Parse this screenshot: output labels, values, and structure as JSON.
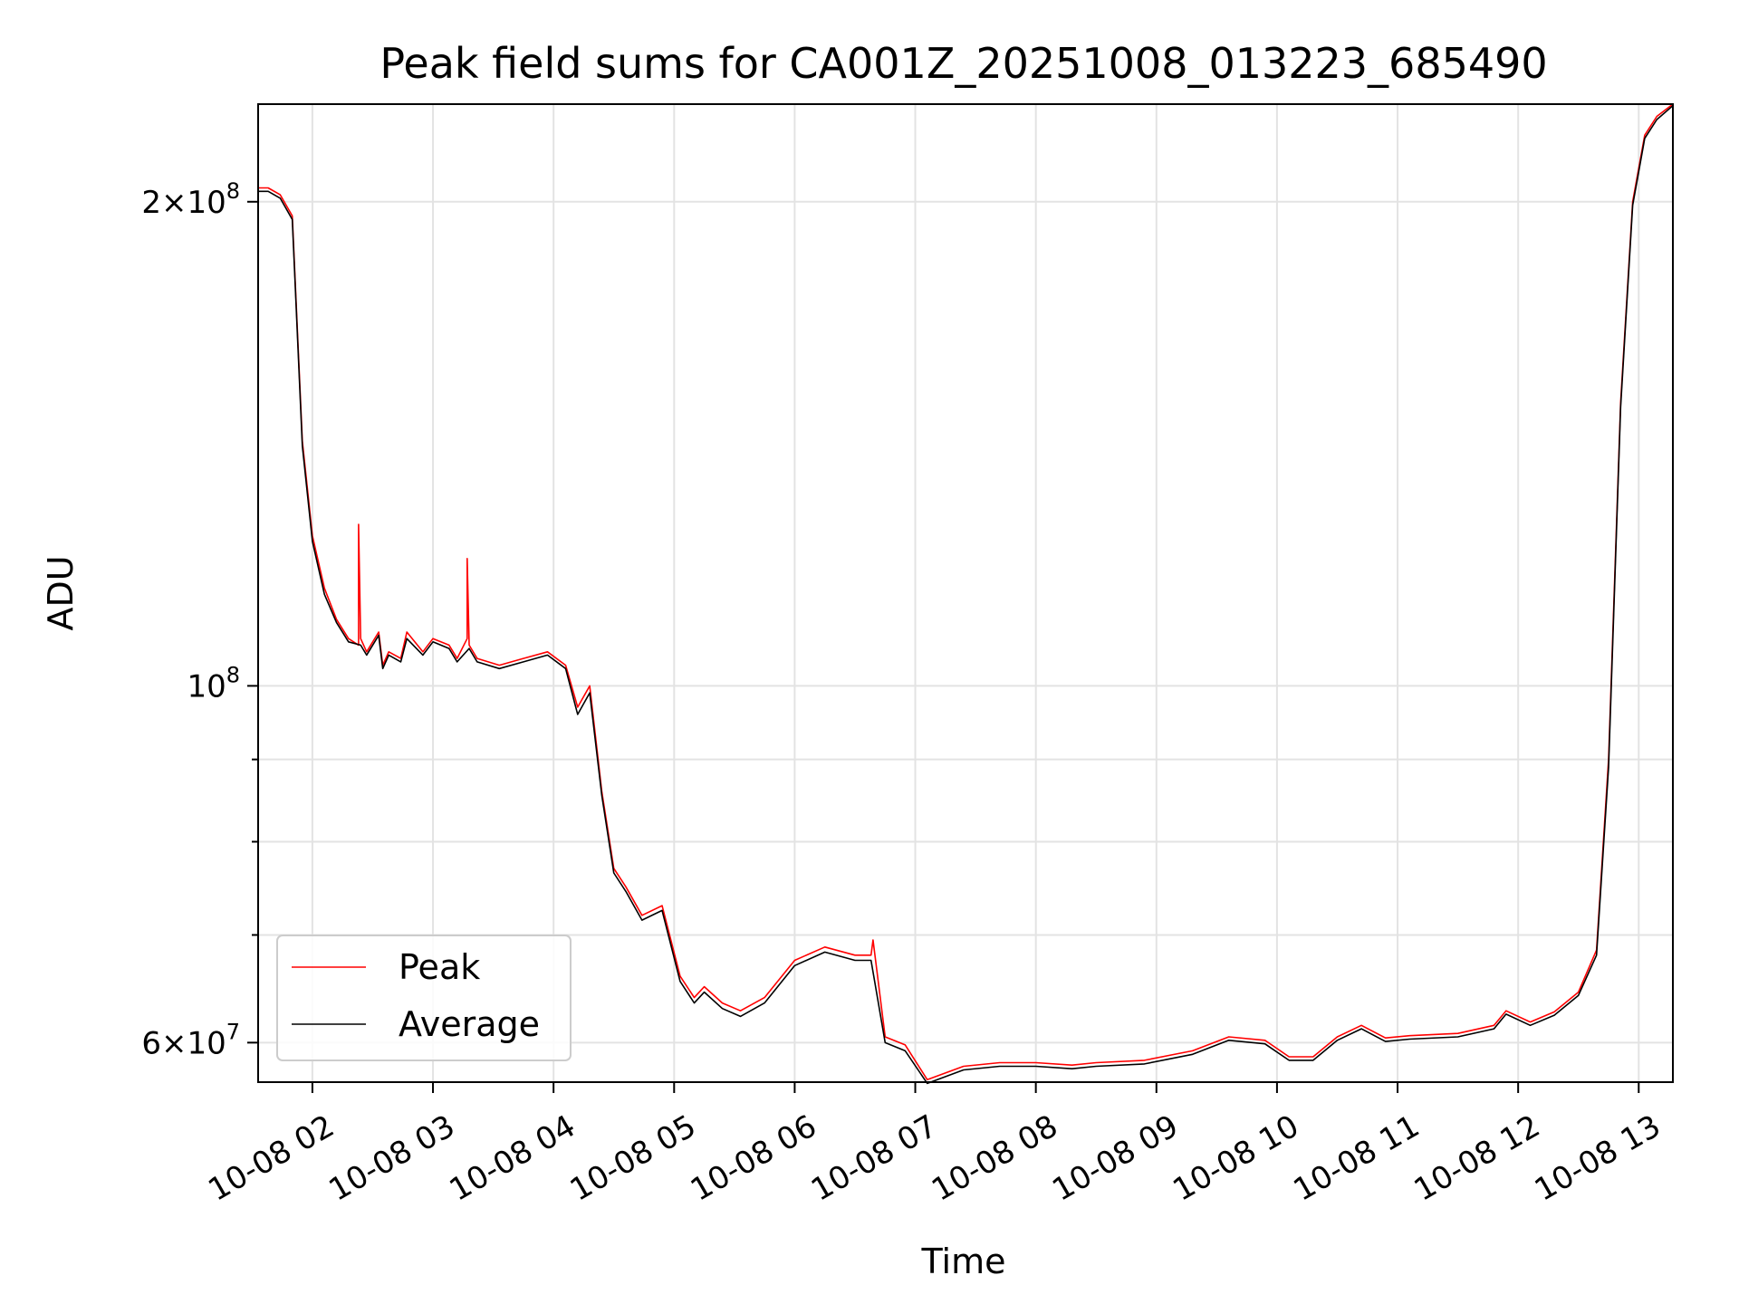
{
  "chart_data": {
    "type": "line",
    "title": "Peak field sums for CA001Z_20251008_013223_685490",
    "xlabel": "Time",
    "ylabel": "ADU",
    "x_unit": "date-hour",
    "xlim": [
      "10-08 01:33",
      "10-08 13:17"
    ],
    "ylim": [
      56700000,
      230000000
    ],
    "yscale": "log",
    "x_ticks": [
      "10-08 02",
      "10-08 03",
      "10-08 04",
      "10-08 05",
      "10-08 06",
      "10-08 07",
      "10-08 08",
      "10-08 09",
      "10-08 10",
      "10-08 11",
      "10-08 12",
      "10-08 13"
    ],
    "y_ticks": [
      {
        "value": 60000000,
        "mantissa": "6",
        "exponent": "7"
      },
      {
        "value": 100000000,
        "mantissa": "",
        "exponent": "8"
      },
      {
        "value": 200000000,
        "mantissa": "2",
        "exponent": "8"
      }
    ],
    "y_minor_ticks": [
      70000000,
      80000000,
      90000000
    ],
    "grid": true,
    "legend_position": "lower-left",
    "series": [
      {
        "name": "Peak",
        "color": "#ff0000",
        "x": [
          "10-08 01:33",
          "10-08 01:38",
          "10-08 01:44",
          "10-08 01:50",
          "10-08 01:55",
          "10-08 02:00",
          "10-08 02:06",
          "10-08 02:12",
          "10-08 02:18",
          "10-08 02:23",
          "10-08 02:23",
          "10-08 02:24",
          "10-08 02:27",
          "10-08 02:33",
          "10-08 02:35",
          "10-08 02:38",
          "10-08 02:44",
          "10-08 02:47",
          "10-08 02:55",
          "10-08 03:00",
          "10-08 03:08",
          "10-08 03:12",
          "10-08 03:17",
          "10-08 03:17",
          "10-08 03:18",
          "10-08 03:22",
          "10-08 03:33",
          "10-08 03:45",
          "10-08 03:57",
          "10-08 04:06",
          "10-08 04:12",
          "10-08 04:18",
          "10-08 04:24",
          "10-08 04:30",
          "10-08 04:36",
          "10-08 04:44",
          "10-08 04:54",
          "10-08 05:03",
          "10-08 05:10",
          "10-08 05:15",
          "10-08 05:24",
          "10-08 05:33",
          "10-08 05:45",
          "10-08 06:00",
          "10-08 06:15",
          "10-08 06:30",
          "10-08 06:38",
          "10-08 06:39",
          "10-08 06:45",
          "10-08 06:55",
          "10-08 07:06",
          "10-08 07:24",
          "10-08 07:42",
          "10-08 08:00",
          "10-08 08:18",
          "10-08 08:30",
          "10-08 08:54",
          "10-08 09:18",
          "10-08 09:36",
          "10-08 09:54",
          "10-08 10:06",
          "10-08 10:18",
          "10-08 10:30",
          "10-08 10:42",
          "10-08 10:54",
          "10-08 11:06",
          "10-08 11:30",
          "10-08 11:48",
          "10-08 11:54",
          "10-08 12:06",
          "10-08 12:18",
          "10-08 12:30",
          "10-08 12:39",
          "10-08 12:45",
          "10-08 12:51",
          "10-08 12:57",
          "10-08 13:03",
          "10-08 13:09",
          "10-08 13:17"
        ],
        "values": [
          204000000,
          204000000,
          202000000,
          196000000,
          142000000,
          124000000,
          115000000,
          110000000,
          107000000,
          106000000,
          126000000,
          107000000,
          105000000,
          108000000,
          103000000,
          105000000,
          104000000,
          108000000,
          105000000,
          107000000,
          106000000,
          104000000,
          107000000,
          120000000,
          106000000,
          104000000,
          103000000,
          104000000,
          105000000,
          103000000,
          97000000,
          100000000,
          86000000,
          77000000,
          75000000,
          72000000,
          73000000,
          66000000,
          64000000,
          65000000,
          63500000,
          62800000,
          64000000,
          67500000,
          68800000,
          68000000,
          68000000,
          69500000,
          60500000,
          59800000,
          56900000,
          58000000,
          58300000,
          58300000,
          58100000,
          58300000,
          58500000,
          59300000,
          60500000,
          60200000,
          58800000,
          58800000,
          60500000,
          61500000,
          60400000,
          60600000,
          60800000,
          61500000,
          62800000,
          61800000,
          62700000,
          64500000,
          68500000,
          90000000,
          150000000,
          200000000,
          220000000,
          226000000,
          230000000
        ]
      },
      {
        "name": "Average",
        "color": "#000000",
        "x": [
          "10-08 01:33",
          "10-08 01:38",
          "10-08 01:44",
          "10-08 01:50",
          "10-08 01:55",
          "10-08 02:00",
          "10-08 02:06",
          "10-08 02:12",
          "10-08 02:18",
          "10-08 02:24",
          "10-08 02:27",
          "10-08 02:33",
          "10-08 02:35",
          "10-08 02:38",
          "10-08 02:44",
          "10-08 02:47",
          "10-08 02:55",
          "10-08 03:00",
          "10-08 03:08",
          "10-08 03:12",
          "10-08 03:18",
          "10-08 03:22",
          "10-08 03:33",
          "10-08 03:45",
          "10-08 03:57",
          "10-08 04:06",
          "10-08 04:12",
          "10-08 04:18",
          "10-08 04:24",
          "10-08 04:30",
          "10-08 04:36",
          "10-08 04:44",
          "10-08 04:54",
          "10-08 05:03",
          "10-08 05:10",
          "10-08 05:15",
          "10-08 05:24",
          "10-08 05:33",
          "10-08 05:45",
          "10-08 06:00",
          "10-08 06:15",
          "10-08 06:30",
          "10-08 06:38",
          "10-08 06:45",
          "10-08 06:55",
          "10-08 07:06",
          "10-08 07:24",
          "10-08 07:42",
          "10-08 08:00",
          "10-08 08:18",
          "10-08 08:30",
          "10-08 08:54",
          "10-08 09:18",
          "10-08 09:36",
          "10-08 09:54",
          "10-08 10:06",
          "10-08 10:18",
          "10-08 10:30",
          "10-08 10:42",
          "10-08 10:54",
          "10-08 11:06",
          "10-08 11:30",
          "10-08 11:48",
          "10-08 11:54",
          "10-08 12:06",
          "10-08 12:18",
          "10-08 12:30",
          "10-08 12:39",
          "10-08 12:45",
          "10-08 12:51",
          "10-08 12:57",
          "10-08 13:03",
          "10-08 13:09",
          "10-08 13:17"
        ],
        "values": [
          203000000,
          203000000,
          201000000,
          195000000,
          141000000,
          123000000,
          114000000,
          109500000,
          106500000,
          106000000,
          104500000,
          107500000,
          102500000,
          104500000,
          103500000,
          107000000,
          104500000,
          106500000,
          105500000,
          103500000,
          105500000,
          103500000,
          102500000,
          103500000,
          104500000,
          102500000,
          96000000,
          99000000,
          85500000,
          76500000,
          74500000,
          71500000,
          72500000,
          65500000,
          63500000,
          64500000,
          63000000,
          62300000,
          63500000,
          67000000,
          68300000,
          67500000,
          67500000,
          60000000,
          59300000,
          56600000,
          57700000,
          58000000,
          58000000,
          57800000,
          58000000,
          58200000,
          59000000,
          60200000,
          59900000,
          58500000,
          58500000,
          60200000,
          61200000,
          60100000,
          60300000,
          60500000,
          61200000,
          62500000,
          61500000,
          62400000,
          64200000,
          68000000,
          89000000,
          149000000,
          199000000,
          219000000,
          225000000,
          229500000
        ]
      }
    ]
  }
}
